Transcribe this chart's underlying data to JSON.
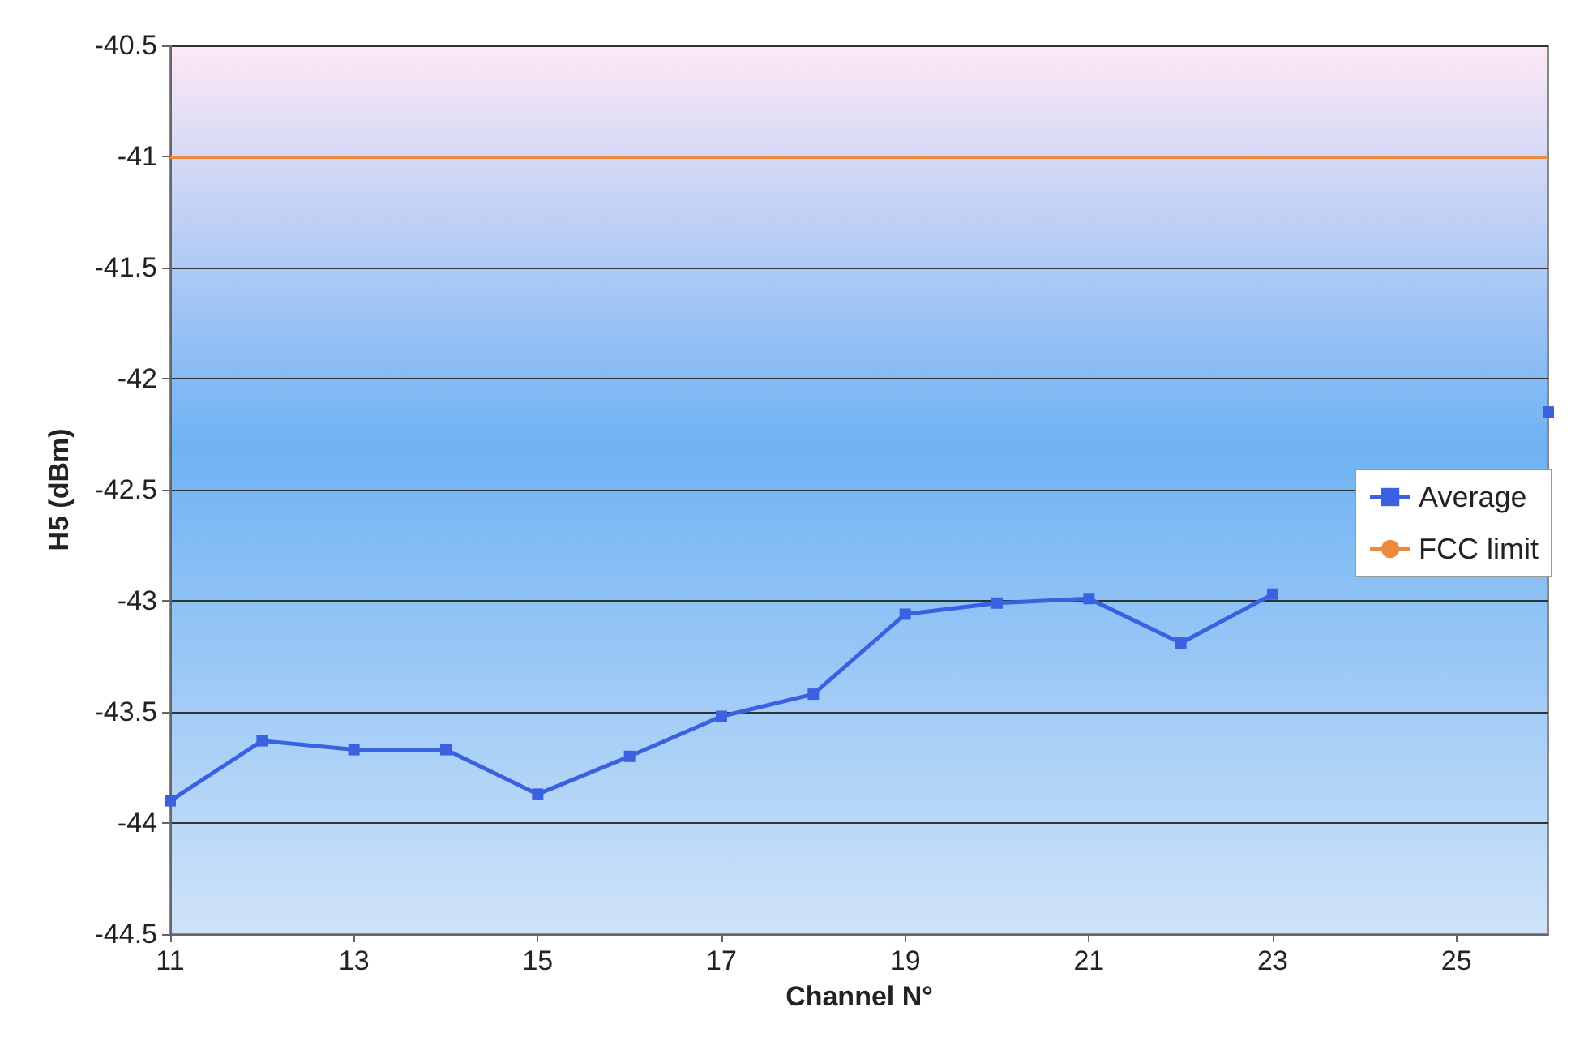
{
  "chart_data": {
    "type": "line",
    "xlabel": "Channel N°",
    "ylabel": "H5 (dBm)",
    "x": [
      11,
      12,
      13,
      14,
      15,
      16,
      17,
      18,
      19,
      20,
      21,
      22,
      23,
      24,
      25,
      26
    ],
    "series": [
      {
        "name": "Average",
        "color": "#3a62e0",
        "values": [
          -43.9,
          -43.63,
          -43.67,
          -43.67,
          -43.87,
          -43.7,
          -43.52,
          -43.42,
          -43.06,
          -43.01,
          -42.99,
          -43.19,
          -42.97,
          null,
          null,
          -42.15
        ]
      }
    ],
    "ref_lines": [
      {
        "axis": "y",
        "value": -41,
        "label": "FCC limit",
        "color": "#ee8a3c"
      }
    ],
    "xlim": [
      11,
      26
    ],
    "xticks": [
      11,
      13,
      15,
      17,
      19,
      21,
      23,
      25
    ],
    "ylim": [
      -44.5,
      -40.5
    ],
    "yticks": [
      -44.5,
      -44,
      -43.5,
      -43,
      -42.5,
      -42,
      -41.5,
      -41,
      -40.5
    ],
    "grid": "y",
    "legend": "right",
    "marker": "square",
    "line_style": "solid"
  }
}
